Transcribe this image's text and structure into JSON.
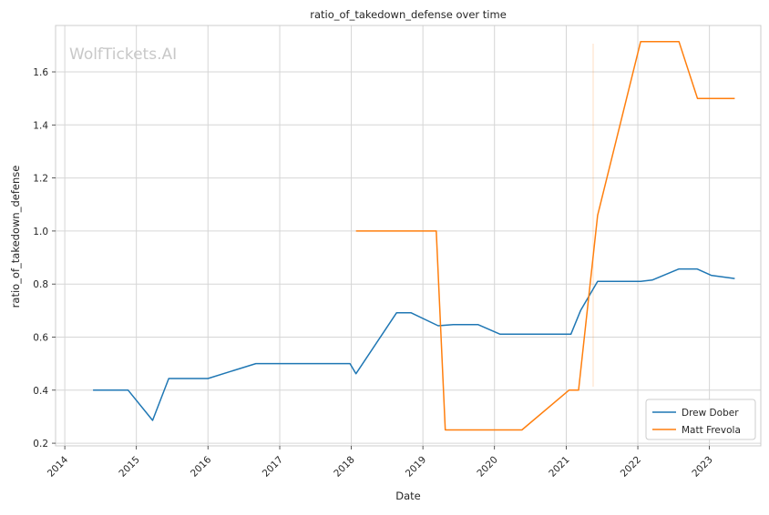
{
  "chart_data": {
    "type": "line",
    "title": "ratio_of_takedown_defense over time",
    "xlabel": "Date",
    "ylabel": "ratio_of_takedown_defense",
    "watermark": "WolfTickets.AI",
    "x_ticks": [
      "2014",
      "2015",
      "2016",
      "2017",
      "2018",
      "2019",
      "2020",
      "2021",
      "2022",
      "2023"
    ],
    "y_ticks": [
      "0.2",
      "0.4",
      "0.6",
      "0.8",
      "1.0",
      "1.2",
      "1.4",
      "1.6"
    ],
    "xlim": [
      "2013-11-15",
      "2023-09-20"
    ],
    "ylim": [
      0.19,
      1.775
    ],
    "grid": true,
    "legend_position": "lower-right",
    "series": [
      {
        "name": "Drew Dober",
        "color": "#1f77b4",
        "points": [
          [
            "2014-05-25",
            0.4
          ],
          [
            "2014-11-20",
            0.4
          ],
          [
            "2015-03-25",
            0.286
          ],
          [
            "2015-06-15",
            0.444
          ],
          [
            "2016-01-01",
            0.444
          ],
          [
            "2016-09-01",
            0.5
          ],
          [
            "2017-12-25",
            0.5
          ],
          [
            "2018-01-25",
            0.462
          ],
          [
            "2018-08-20",
            0.692
          ],
          [
            "2018-11-01",
            0.692
          ],
          [
            "2019-03-20",
            0.643
          ],
          [
            "2019-06-05",
            0.647
          ],
          [
            "2019-10-10",
            0.647
          ],
          [
            "2020-01-30",
            0.611
          ],
          [
            "2021-01-25",
            0.611
          ],
          [
            "2021-03-15",
            0.7
          ],
          [
            "2021-06-10",
            0.81
          ],
          [
            "2022-01-15",
            0.81
          ],
          [
            "2022-03-15",
            0.815
          ],
          [
            "2022-07-30",
            0.857
          ],
          [
            "2022-10-30",
            0.857
          ],
          [
            "2023-01-10",
            0.833
          ],
          [
            "2023-05-10",
            0.821
          ]
        ]
      },
      {
        "name": "Matt Frevola",
        "color": "#ff7f0e",
        "points": [
          [
            "2018-01-25",
            1.0
          ],
          [
            "2019-03-10",
            1.0
          ],
          [
            "2019-04-25",
            0.25
          ],
          [
            "2020-05-20",
            0.25
          ],
          [
            "2021-01-15",
            0.4
          ],
          [
            "2021-03-05",
            0.4
          ],
          [
            "2021-06-10",
            1.059
          ],
          [
            "2022-01-15",
            1.714
          ],
          [
            "2022-07-30",
            1.714
          ],
          [
            "2022-11-01",
            1.5
          ],
          [
            "2023-05-10",
            1.5
          ]
        ]
      }
    ]
  }
}
